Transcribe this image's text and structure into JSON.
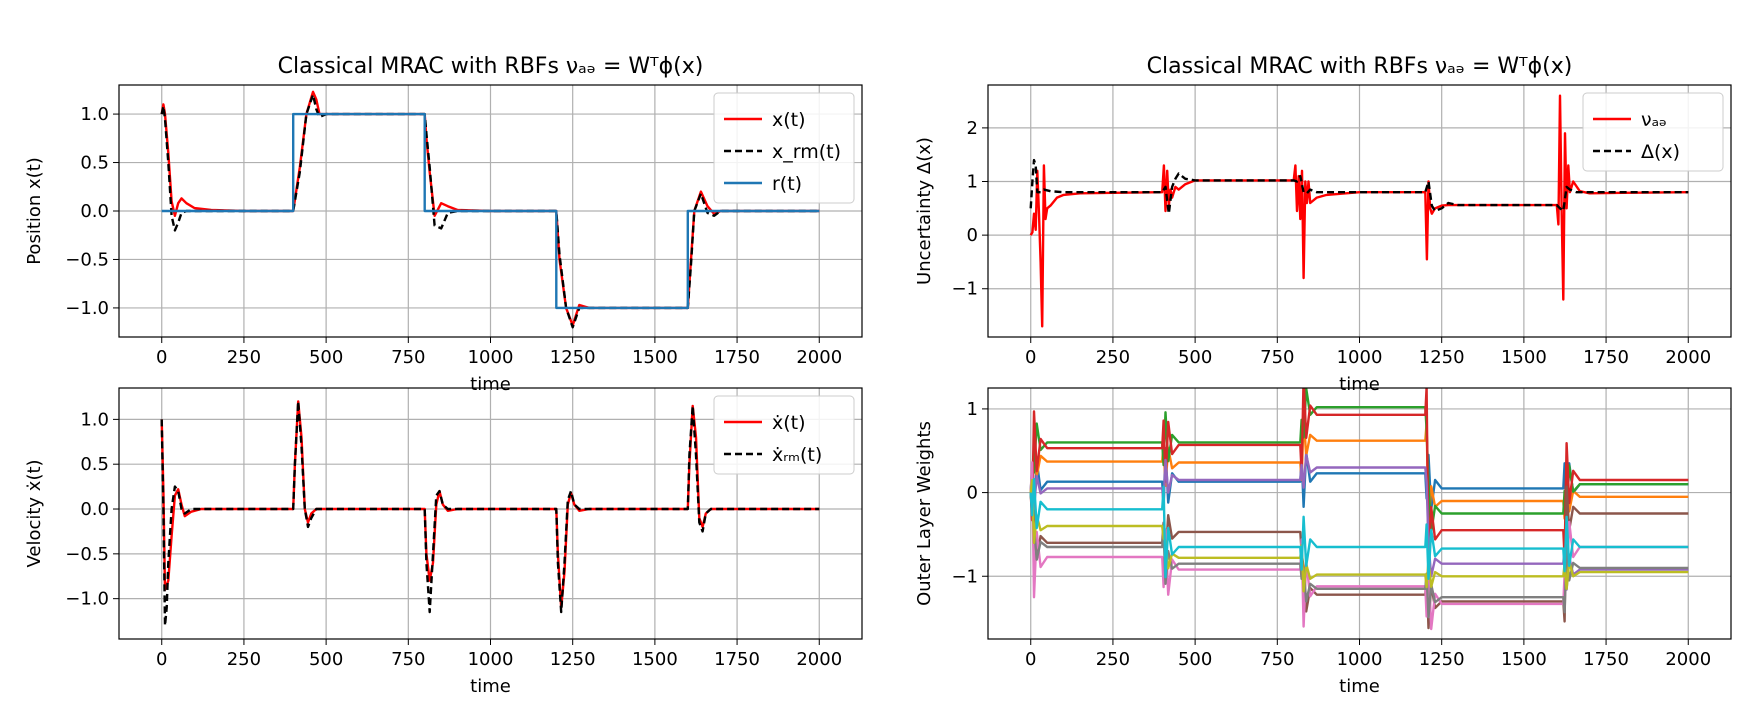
{
  "chart_data": [
    {
      "type": "line",
      "title": "Classical MRAC with RBFs νₐₔ = Wᵀϕ(x)",
      "xlabel": "time",
      "ylabel": "Position x(t)",
      "xlim": [
        -130,
        2130
      ],
      "ylim": [
        -1.3,
        1.3
      ],
      "xticks": [
        "0",
        "250",
        "500",
        "750",
        "1000",
        "1250",
        "1500",
        "1750",
        "2000"
      ],
      "yticks": [
        "−1.0",
        "−0.5",
        "0.0",
        "0.5",
        "1.0"
      ],
      "grid": true,
      "legend_position": "top-right",
      "series": [
        {
          "name": "x(t)",
          "color": "#ff0000",
          "style": "solid",
          "x": [
            0,
            5,
            10,
            20,
            30,
            40,
            50,
            60,
            75,
            100,
            150,
            250,
            400,
            420,
            440,
            460,
            470,
            480,
            500,
            600,
            800,
            805,
            815,
            830,
            850,
            870,
            900,
            1000,
            1200,
            1210,
            1230,
            1250,
            1270,
            1300,
            1400,
            1600,
            1610,
            1620,
            1640,
            1660,
            1680,
            1700,
            1800,
            2000
          ],
          "y": [
            1.0,
            1.1,
            1.0,
            0.6,
            0.1,
            -0.05,
            0.08,
            0.13,
            0.08,
            0.03,
            0.01,
            0.0,
            0.0,
            0.45,
            1.0,
            1.23,
            1.15,
            1.0,
            1.0,
            1.0,
            1.0,
            0.75,
            0.4,
            -0.05,
            0.08,
            0.05,
            0.01,
            0.0,
            0.0,
            -0.5,
            -1.0,
            -1.18,
            -0.97,
            -1.0,
            -1.0,
            -1.0,
            -0.5,
            0.0,
            0.2,
            0.05,
            -0.03,
            0.0,
            0.0,
            0.0
          ]
        },
        {
          "name": "x_rm(t)",
          "color": "#000000",
          "style": "dashed",
          "x": [
            0,
            5,
            10,
            20,
            30,
            40,
            50,
            60,
            75,
            100,
            150,
            250,
            400,
            420,
            440,
            460,
            470,
            480,
            500,
            600,
            800,
            805,
            815,
            830,
            850,
            870,
            900,
            1000,
            1200,
            1210,
            1230,
            1250,
            1270,
            1300,
            1400,
            1600,
            1610,
            1620,
            1640,
            1660,
            1680,
            1700,
            1800,
            2000
          ],
          "y": [
            1.0,
            1.08,
            0.95,
            0.5,
            -0.05,
            -0.2,
            -0.12,
            -0.02,
            0.0,
            0.0,
            0.0,
            0.0,
            0.0,
            0.4,
            1.0,
            1.2,
            1.05,
            0.97,
            1.0,
            1.0,
            1.0,
            0.8,
            0.45,
            -0.15,
            -0.18,
            -0.02,
            0.0,
            0.0,
            0.0,
            -0.45,
            -1.0,
            -1.2,
            -1.0,
            -1.0,
            -1.0,
            -1.0,
            -0.55,
            0.0,
            0.18,
            -0.02,
            -0.05,
            0.0,
            0.0,
            0.0
          ]
        },
        {
          "name": "r(t)",
          "color": "#1f77b4",
          "style": "solid",
          "x": [
            0,
            400,
            400,
            800,
            800,
            1200,
            1200,
            1600,
            1600,
            2000
          ],
          "y": [
            0,
            0,
            1,
            1,
            0,
            0,
            -1,
            -1,
            0,
            0
          ]
        }
      ]
    },
    {
      "type": "line",
      "title": "Classical MRAC with RBFs νₐₔ = Wᵀϕ(x)",
      "xlabel": "time",
      "ylabel": "Uncertainty Δ(x)",
      "xlim": [
        -130,
        2130
      ],
      "ylim": [
        -1.9,
        2.8
      ],
      "xticks": [
        "0",
        "250",
        "500",
        "750",
        "1000",
        "1250",
        "1500",
        "1750",
        "2000"
      ],
      "yticks": [
        "−1",
        "0",
        "1",
        "2"
      ],
      "grid": true,
      "legend_position": "top-right",
      "series": [
        {
          "name": "νₐₔ",
          "color": "#ff0000",
          "style": "solid",
          "x": [
            0,
            5,
            10,
            15,
            20,
            25,
            30,
            35,
            40,
            45,
            50,
            60,
            80,
            100,
            150,
            250,
            400,
            405,
            410,
            415,
            420,
            425,
            430,
            440,
            450,
            470,
            500,
            600,
            800,
            805,
            810,
            815,
            820,
            825,
            830,
            835,
            840,
            845,
            850,
            870,
            900,
            1000,
            1200,
            1205,
            1210,
            1215,
            1220,
            1230,
            1250,
            1270,
            1300,
            1400,
            1600,
            1605,
            1610,
            1615,
            1620,
            1625,
            1630,
            1635,
            1640,
            1650,
            1670,
            1700,
            1800,
            2000
          ],
          "y": [
            0.0,
            0.05,
            0.4,
            0.1,
            1.2,
            0.4,
            -0.5,
            -1.7,
            1.3,
            0.3,
            0.5,
            0.55,
            0.7,
            0.75,
            0.78,
            0.79,
            0.8,
            1.3,
            0.45,
            1.2,
            0.55,
            0.85,
            0.7,
            0.9,
            0.85,
            0.95,
            1.02,
            1.02,
            1.02,
            1.3,
            0.45,
            1.1,
            0.3,
            1.2,
            -0.8,
            1.0,
            0.6,
            1.0,
            0.6,
            0.7,
            0.75,
            0.8,
            0.8,
            -0.45,
            1.0,
            0.5,
            0.4,
            0.5,
            0.55,
            0.56,
            0.56,
            0.56,
            0.56,
            0.2,
            2.6,
            0.4,
            -1.2,
            1.9,
            0.5,
            1.3,
            0.8,
            1.0,
            0.82,
            0.78,
            0.79,
            0.8
          ]
        },
        {
          "name": "Δ(x)",
          "color": "#000000",
          "style": "dashed",
          "x": [
            0,
            5,
            10,
            15,
            20,
            30,
            40,
            60,
            100,
            150,
            250,
            400,
            410,
            420,
            430,
            440,
            450,
            470,
            500,
            600,
            800,
            810,
            820,
            830,
            840,
            850,
            870,
            900,
            1000,
            1200,
            1210,
            1220,
            1230,
            1250,
            1270,
            1300,
            1400,
            1600,
            1610,
            1620,
            1630,
            1640,
            1660,
            1700,
            1800,
            2000
          ],
          "y": [
            0.5,
            1.0,
            1.4,
            1.3,
            0.8,
            0.8,
            0.85,
            0.82,
            0.8,
            0.8,
            0.8,
            0.8,
            0.9,
            0.4,
            0.9,
            1.05,
            1.15,
            1.05,
            1.02,
            1.02,
            1.02,
            1.0,
            1.1,
            0.8,
            0.78,
            0.85,
            0.8,
            0.8,
            0.8,
            0.8,
            1.0,
            0.55,
            0.45,
            0.5,
            0.6,
            0.56,
            0.56,
            0.56,
            0.5,
            0.45,
            0.9,
            0.85,
            0.8,
            0.8,
            0.8,
            0.8
          ]
        }
      ]
    },
    {
      "type": "line",
      "title": "",
      "xlabel": "time",
      "ylabel": "Velocity ẋ(t)",
      "xlim": [
        -130,
        2130
      ],
      "ylim": [
        -1.45,
        1.35
      ],
      "xticks": [
        "0",
        "250",
        "500",
        "750",
        "1000",
        "1250",
        "1500",
        "1750",
        "2000"
      ],
      "yticks": [
        "−1.0",
        "−0.5",
        "0.0",
        "0.5",
        "1.0"
      ],
      "grid": true,
      "legend_position": "top-right",
      "series": [
        {
          "name": "ẋ(t)",
          "color": "#ff0000",
          "style": "solid",
          "x": [
            0,
            5,
            10,
            20,
            30,
            40,
            50,
            60,
            70,
            90,
            120,
            150,
            250,
            400,
            405,
            415,
            425,
            435,
            445,
            455,
            470,
            500,
            600,
            800,
            805,
            815,
            825,
            835,
            845,
            855,
            870,
            900,
            1000,
            1200,
            1205,
            1215,
            1225,
            1235,
            1245,
            1255,
            1270,
            1300,
            1400,
            1600,
            1605,
            1615,
            1625,
            1635,
            1645,
            1655,
            1670,
            1700,
            1800,
            2000
          ],
          "y": [
            1.0,
            0.2,
            -0.9,
            -0.8,
            -0.3,
            0.15,
            0.22,
            0.05,
            -0.08,
            -0.03,
            0.0,
            0.0,
            0.0,
            0.0,
            0.5,
            1.2,
            0.8,
            0.0,
            -0.15,
            -0.05,
            0.0,
            0.0,
            0.0,
            0.0,
            -0.5,
            -0.8,
            -0.6,
            0.05,
            0.2,
            0.05,
            -0.02,
            0.0,
            0.0,
            0.0,
            -0.5,
            -1.1,
            -0.7,
            0.05,
            0.18,
            0.05,
            -0.02,
            0.0,
            0.0,
            0.0,
            0.5,
            1.15,
            0.8,
            -0.1,
            -0.2,
            -0.05,
            0.0,
            0.0,
            0.0,
            0.0
          ]
        },
        {
          "name": "ẋᵣₘ(t)",
          "color": "#000000",
          "style": "dashed",
          "x": [
            0,
            5,
            10,
            15,
            20,
            30,
            40,
            50,
            60,
            70,
            90,
            120,
            150,
            250,
            400,
            405,
            415,
            425,
            435,
            445,
            455,
            470,
            500,
            600,
            800,
            805,
            815,
            825,
            835,
            845,
            855,
            870,
            900,
            1000,
            1200,
            1205,
            1215,
            1225,
            1235,
            1245,
            1255,
            1270,
            1300,
            1400,
            1600,
            1605,
            1615,
            1625,
            1635,
            1645,
            1655,
            1670,
            1700,
            1800,
            2000
          ],
          "y": [
            1.0,
            0.0,
            -1.3,
            -1.1,
            -0.6,
            0.0,
            0.25,
            0.2,
            0.0,
            -0.05,
            0.0,
            0.0,
            0.0,
            0.0,
            0.0,
            0.5,
            1.2,
            0.7,
            0.0,
            -0.2,
            -0.1,
            0.0,
            0.0,
            0.0,
            0.0,
            -0.6,
            -1.15,
            -0.5,
            0.15,
            0.2,
            0.05,
            0.0,
            0.0,
            0.0,
            0.0,
            -0.6,
            -1.15,
            -0.6,
            0.1,
            0.2,
            0.05,
            0.0,
            0.0,
            0.0,
            0.0,
            0.6,
            1.15,
            0.6,
            -0.15,
            -0.25,
            -0.05,
            0.0,
            0.0,
            0.0,
            0.0
          ]
        }
      ]
    },
    {
      "type": "line",
      "title": "",
      "xlabel": "time",
      "ylabel": "Outer Layer Weights",
      "xlim": [
        -130,
        2130
      ],
      "ylim": [
        -1.75,
        1.25
      ],
      "xticks": [
        "0",
        "250",
        "500",
        "750",
        "1000",
        "1250",
        "1500",
        "1750",
        "2000"
      ],
      "yticks": [
        "−1",
        "0",
        "1"
      ],
      "grid": true,
      "legend_position": "none",
      "segment_boundaries": [
        0,
        400,
        820,
        1200,
        1620,
        2000
      ],
      "series": [
        {
          "color": "#1f77b4",
          "levels": [
            0.13,
            0.13,
            0.23,
            0.05,
            0.1
          ]
        },
        {
          "color": "#ff7f0e",
          "levels": [
            0.37,
            0.36,
            0.62,
            -0.1,
            -0.05
          ]
        },
        {
          "color": "#2ca02c",
          "levels": [
            0.6,
            0.6,
            1.02,
            -0.25,
            0.1
          ]
        },
        {
          "color": "#d62728",
          "levels": [
            0.53,
            0.57,
            0.93,
            -0.45,
            0.15
          ]
        },
        {
          "color": "#9467bd",
          "levels": [
            0.05,
            0.15,
            0.3,
            -0.85,
            -0.92
          ]
        },
        {
          "color": "#8c564b",
          "levels": [
            -0.6,
            -0.47,
            -1.22,
            -1.3,
            -0.25
          ]
        },
        {
          "color": "#e377c2",
          "levels": [
            -0.77,
            -0.92,
            -1.12,
            -1.33,
            -0.65
          ]
        },
        {
          "color": "#7f7f7f",
          "levels": [
            -0.65,
            -0.85,
            -1.15,
            -1.25,
            -0.9
          ]
        },
        {
          "color": "#bcbd22",
          "levels": [
            -0.4,
            -0.78,
            -0.98,
            -1.0,
            -0.95
          ]
        },
        {
          "color": "#17becf",
          "levels": [
            -0.2,
            -0.65,
            -0.65,
            -0.67,
            -0.65
          ]
        }
      ]
    }
  ]
}
